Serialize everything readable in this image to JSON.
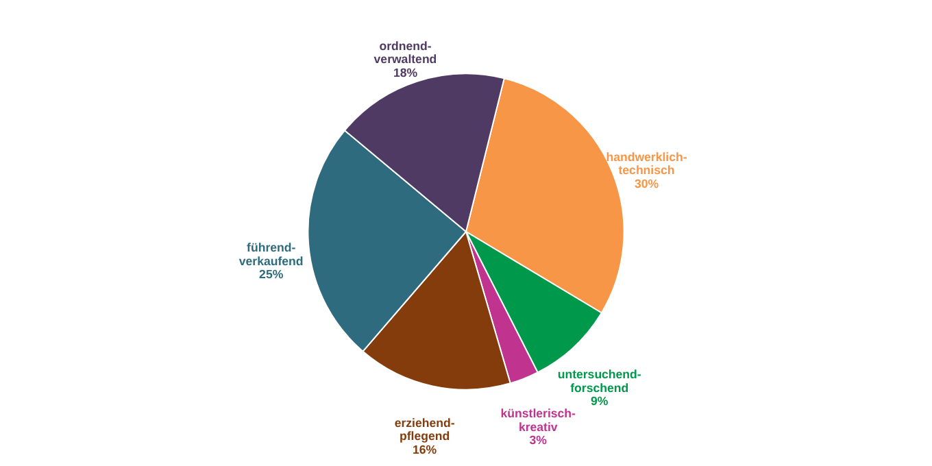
{
  "chart_data": {
    "type": "pie",
    "categories": [
      "handwerklich-technisch",
      "untersuchend-forschend",
      "künstlerisch-kreativ",
      "erziehend-pflegend",
      "führend-verkaufend",
      "ordnend-verwaltend"
    ],
    "values": [
      30,
      9,
      3,
      16,
      25,
      18
    ],
    "colors": [
      "#f79646",
      "#00984a",
      "#c0338f",
      "#843c0c",
      "#2e6b7e",
      "#4f3a63"
    ],
    "value_labels": [
      "30%",
      "9%",
      "3%",
      "16%",
      "25%",
      "18%"
    ]
  }
}
